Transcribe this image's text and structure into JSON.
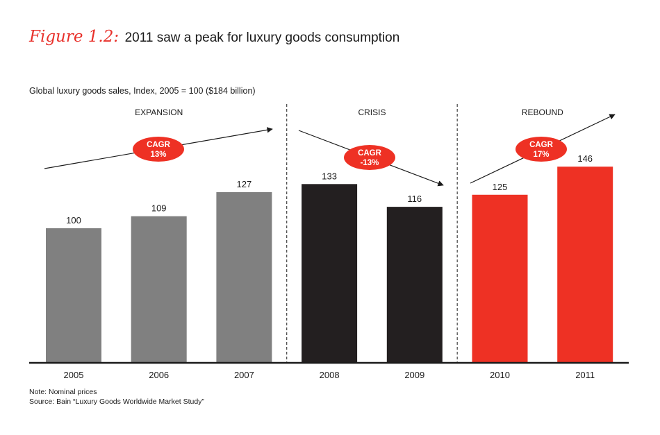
{
  "figure": {
    "label": "Figure 1.2:",
    "title": "2011 saw a peak for luxury goods consumption"
  },
  "subtitle": "Global luxury goods sales, Index, 2005 = 100 ($184 billion)",
  "notes": {
    "note": "Note: Nominal prices",
    "source": "Source: Bain “Luxury Goods Worldwide Market Study”"
  },
  "colors": {
    "expansion": "#808080",
    "crisis": "#231f20",
    "rebound": "#ee3124",
    "accent": "#e8302a"
  },
  "chart_data": {
    "type": "bar",
    "title": "2011 saw a peak for luxury goods consumption",
    "ylabel": "Global luxury goods sales, Index, 2005 = 100 ($184 billion)",
    "ylim": [
      0,
      160
    ],
    "categories": [
      "2005",
      "2006",
      "2007",
      "2008",
      "2009",
      "2010",
      "2011"
    ],
    "values": [
      100,
      109,
      127,
      133,
      116,
      125,
      146
    ],
    "phases": [
      {
        "name": "EXPANSION",
        "start": 0,
        "end": 2,
        "color": "#808080",
        "cagr_label": "CAGR",
        "cagr_value": "13%",
        "trend": "up"
      },
      {
        "name": "CRISIS",
        "start": 3,
        "end": 4,
        "color": "#231f20",
        "cagr_label": "CAGR",
        "cagr_value": "-13%",
        "trend": "down"
      },
      {
        "name": "REBOUND",
        "start": 5,
        "end": 6,
        "color": "#ee3124",
        "cagr_label": "CAGR",
        "cagr_value": "17%",
        "trend": "up"
      }
    ]
  }
}
